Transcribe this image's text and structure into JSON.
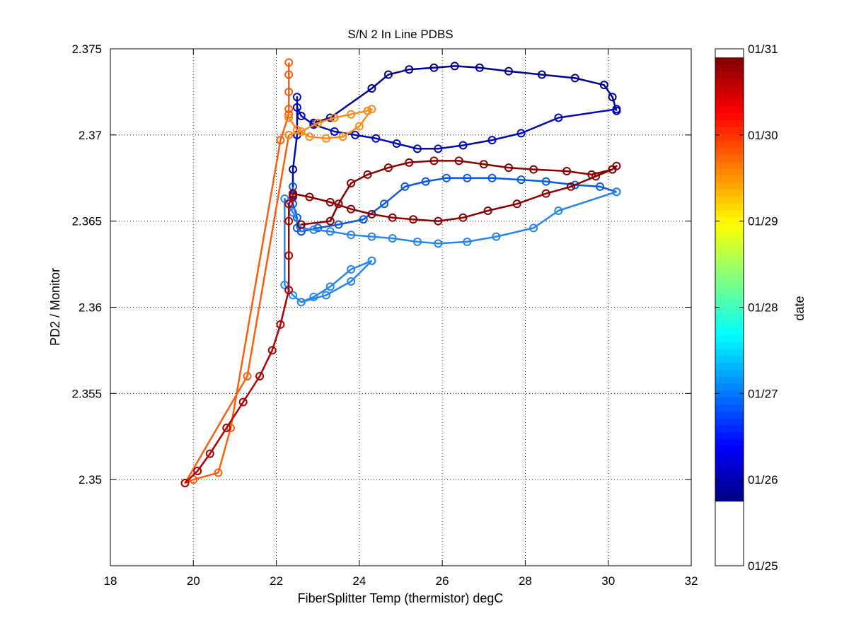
{
  "chart_data": {
    "type": "line",
    "title": "S/N 2 In Line PDBS",
    "xlabel": "FiberSplitter Temp (thermistor) degC",
    "ylabel": "PD2 / Monitor",
    "xlim": [
      18,
      32
    ],
    "ylim": [
      2.345,
      2.375
    ],
    "x_ticks": [
      18,
      20,
      22,
      24,
      26,
      28,
      30,
      32
    ],
    "x_tick_labels": [
      "18",
      "20",
      "22",
      "24",
      "26",
      "28",
      "30",
      "32"
    ],
    "y_ticks": [
      2.35,
      2.355,
      2.36,
      2.365,
      2.37,
      2.375
    ],
    "y_tick_labels": [
      "2.35",
      "2.355",
      "2.36",
      "2.365",
      "2.37",
      "2.375"
    ],
    "grid": true,
    "grid_style": "dotted",
    "marker": "circle",
    "colorbar": {
      "label": "date",
      "position": "right",
      "tick_labels": [
        "01/25",
        "01/26",
        "01/27",
        "01/28",
        "01/29",
        "01/30",
        "01/31"
      ],
      "colormap": "jet",
      "data_range_days": [
        0.75,
        5.9
      ]
    },
    "series": [
      {
        "color": "#00008f",
        "x": [
          22.9,
          23.3,
          24.3,
          24.7,
          25.2,
          25.8,
          26.3,
          26.9,
          27.6,
          28.4,
          29.2,
          29.9,
          30.1,
          30.2
        ],
        "y": [
          2.3707,
          2.371,
          2.3727,
          2.3735,
          2.3738,
          2.3739,
          2.374,
          2.3739,
          2.3737,
          2.3735,
          2.3733,
          2.3729,
          2.3722,
          2.3714
        ]
      },
      {
        "color": "#0008b8",
        "x": [
          30.2,
          28.8,
          27.9,
          27.2,
          26.5,
          25.9,
          25.4,
          24.9,
          24.4,
          23.9,
          23.4,
          22.9,
          22.6,
          22.5,
          22.5,
          22.5,
          22.4,
          22.4
        ],
        "y": [
          2.3715,
          2.371,
          2.3701,
          2.3697,
          2.3694,
          2.3692,
          2.3692,
          2.3695,
          2.3698,
          2.37,
          2.3702,
          2.3706,
          2.3711,
          2.3716,
          2.3722,
          2.37,
          2.368,
          2.3665
        ]
      },
      {
        "color": "#0a5ae0",
        "x": [
          22.4,
          22.4,
          22.5,
          22.5,
          22.6,
          22.6,
          23.0,
          23.5,
          24.1,
          24.6,
          25.1,
          25.6,
          26.1,
          26.6,
          27.2,
          27.9,
          28.5,
          29.2,
          29.8,
          30.2
        ],
        "y": [
          2.367,
          2.366,
          2.3652,
          2.3646,
          2.3644,
          2.3644,
          2.3646,
          2.3648,
          2.3651,
          2.366,
          2.367,
          2.3673,
          2.3675,
          2.3675,
          2.3675,
          2.3674,
          2.3673,
          2.3671,
          2.367,
          2.3667
        ]
      },
      {
        "color": "#2686ee",
        "x": [
          30.2,
          28.8,
          28.2,
          27.3,
          26.6,
          25.9,
          25.4,
          24.8,
          24.3,
          23.8,
          23.3,
          22.9,
          22.6,
          22.4,
          22.2,
          22.2,
          22.4,
          22.6,
          23.2,
          23.8,
          24.3
        ],
        "y": [
          2.3667,
          2.3656,
          2.3646,
          2.3641,
          2.3638,
          2.3637,
          2.3638,
          2.364,
          2.3641,
          2.3642,
          2.3644,
          2.3645,
          2.3646,
          2.3655,
          2.3663,
          2.3613,
          2.3607,
          2.3603,
          2.3607,
          2.3615,
          2.3627
        ]
      },
      {
        "color": "#2686ee",
        "x": [
          24.3,
          23.8,
          23.3,
          22.9,
          22.6
        ],
        "y": [
          2.3627,
          2.3622,
          2.3612,
          2.3606,
          2.3603
        ]
      },
      {
        "color": "#f86010",
        "x": [
          22.3,
          22.3,
          22.3,
          22.3,
          22.3,
          22.1,
          20.9,
          20.6,
          20.0,
          19.8,
          21.3,
          22.3
        ],
        "y": [
          2.3742,
          2.3735,
          2.3725,
          2.3715,
          2.3712,
          2.3697,
          2.353,
          2.3504,
          2.35,
          2.3498,
          2.356,
          2.37
        ]
      },
      {
        "color": "#fa8a1a",
        "x": [
          22.3,
          22.5,
          22.8,
          23.2,
          23.6,
          24.0,
          24.3,
          24.2,
          23.8,
          23.4,
          23.0,
          22.6,
          22.3
        ],
        "y": [
          2.371,
          2.3703,
          2.3699,
          2.3698,
          2.3699,
          2.3705,
          2.3715,
          2.3714,
          2.3712,
          2.371,
          2.3707,
          2.3702,
          2.37
        ]
      },
      {
        "color": "#b00000",
        "x": [
          19.8,
          20.1,
          20.4,
          20.8,
          21.2,
          21.6,
          21.9,
          22.1,
          22.3,
          22.3,
          22.3,
          22.3,
          22.4,
          22.4
        ],
        "y": [
          2.3498,
          2.3505,
          2.3515,
          2.353,
          2.3545,
          2.356,
          2.3575,
          2.359,
          2.361,
          2.363,
          2.365,
          2.366,
          2.3664,
          2.3666
        ]
      },
      {
        "color": "#8a0000",
        "x": [
          22.4,
          22.8,
          23.3,
          23.8,
          24.3,
          24.8,
          25.3,
          25.9,
          26.5,
          27.1,
          27.8,
          28.5,
          29.1,
          29.7,
          30.1,
          30.2,
          30.1,
          29.6,
          29.0,
          28.2,
          27.6,
          27.0,
          26.4,
          25.8,
          25.2,
          24.7,
          24.2,
          23.8,
          23.5,
          23.3,
          22.6
        ],
        "y": [
          2.3666,
          2.3664,
          2.3661,
          2.3657,
          2.3654,
          2.3652,
          2.3651,
          2.365,
          2.3652,
          2.3656,
          2.366,
          2.3666,
          2.367,
          2.3676,
          2.368,
          2.3682,
          2.368,
          2.3677,
          2.3679,
          2.368,
          2.3681,
          2.3683,
          2.3685,
          2.3685,
          2.3684,
          2.3681,
          2.3677,
          2.3672,
          2.366,
          2.365,
          2.3648
        ]
      }
    ]
  }
}
